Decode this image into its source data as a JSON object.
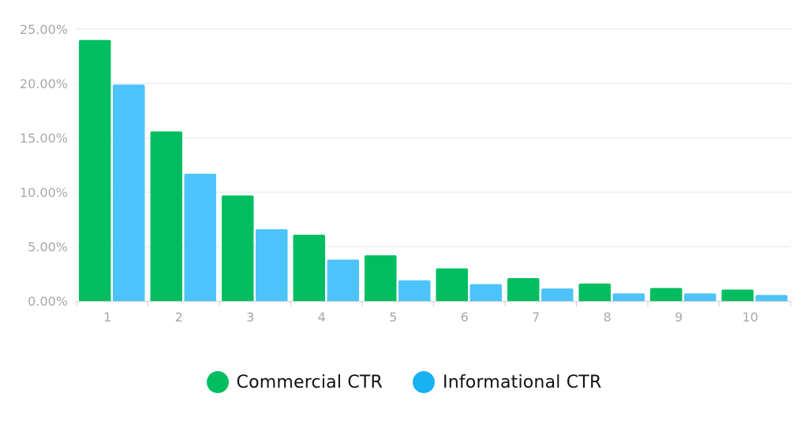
{
  "chart_data": {
    "type": "bar",
    "categories": [
      "1",
      "2",
      "3",
      "4",
      "5",
      "6",
      "7",
      "8",
      "9",
      "10"
    ],
    "series": [
      {
        "name": "Commercial CTR",
        "color": "#00BE5F",
        "values": [
          24.0,
          15.6,
          9.7,
          6.1,
          4.2,
          3.0,
          2.1,
          1.6,
          1.2,
          1.05
        ]
      },
      {
        "name": "Informational CTR",
        "color": "#4CC3FA",
        "values": [
          19.9,
          11.7,
          6.6,
          3.8,
          1.9,
          1.55,
          1.15,
          0.7,
          0.7,
          0.55
        ]
      }
    ],
    "y_ticks": [
      "0.00%",
      "5.00%",
      "10.00%",
      "15.00%",
      "20.00%",
      "25.00%"
    ],
    "ylim": [
      0,
      25
    ],
    "grid": true,
    "legend_position": "bottom",
    "legend_swatch_colors": [
      "#00BE5F",
      "#18B1F2"
    ]
  }
}
